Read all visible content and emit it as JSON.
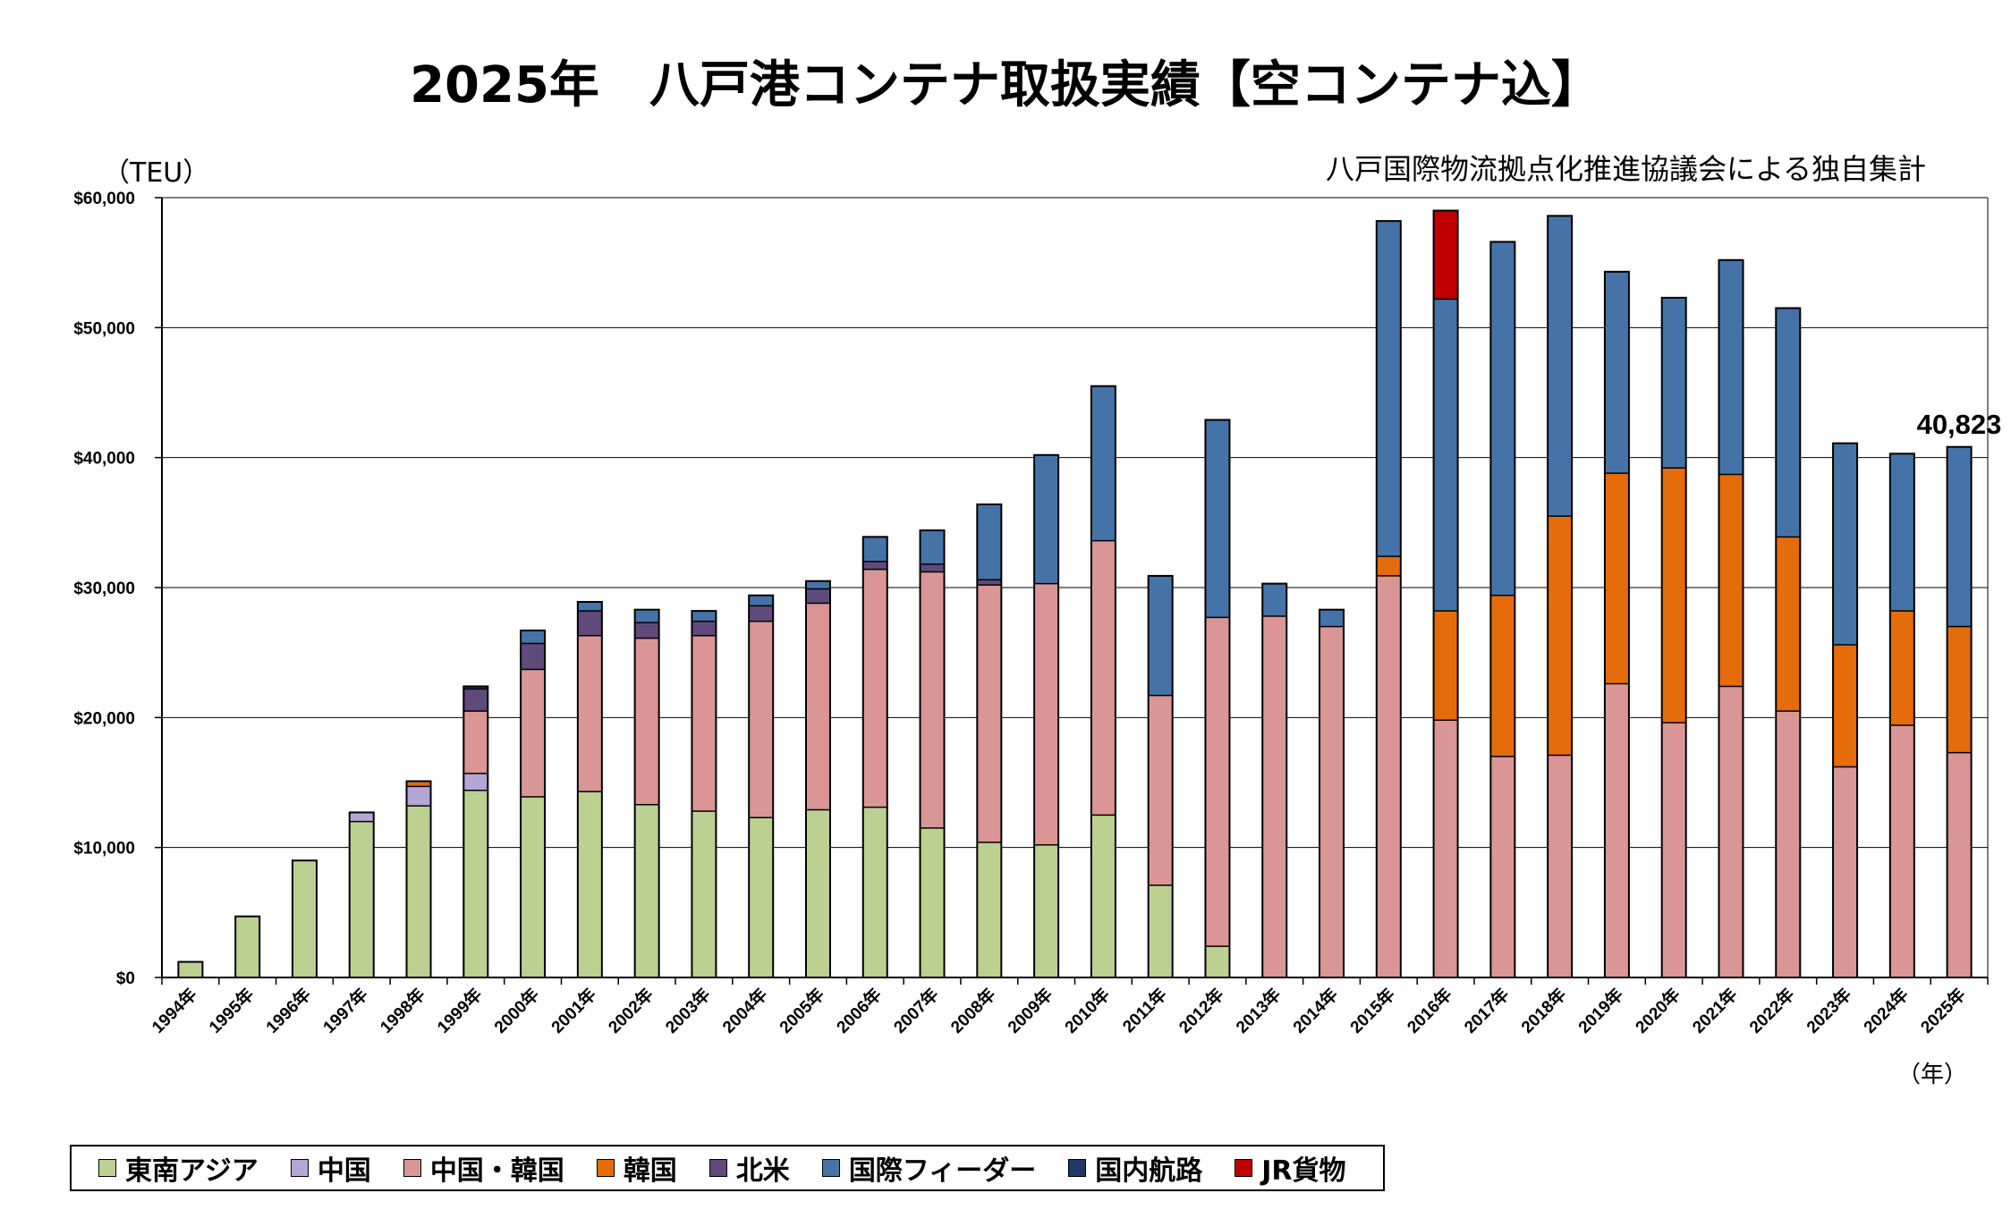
{
  "title": "2025年　八戸港コンテナ取扱実績【空コンテナ込】",
  "unit_label": "（TEU）",
  "source_note": "八戸国際物流拠点化推進協議会による独自集計",
  "x_unit_label": "（年）",
  "annotation": "40,823",
  "chart_data": {
    "type": "bar",
    "stacked": true,
    "title": "2025年　八戸港コンテナ取扱実績【空コンテナ込】",
    "ylim": [
      0,
      60000
    ],
    "y_ticks": [
      "$0",
      "$10,000",
      "$20,000",
      "$30,000",
      "$40,000",
      "$50,000",
      "$60,000"
    ],
    "grid": true,
    "legend_position": "bottom",
    "categories": [
      "1994年",
      "1995年",
      "1996年",
      "1997年",
      "1998年",
      "1999年",
      "2000年",
      "2001年",
      "2002年",
      "2003年",
      "2004年",
      "2005年",
      "2006年",
      "2007年",
      "2008年",
      "2009年",
      "2010年",
      "2011年",
      "2012年",
      "2013年",
      "2014年",
      "2015年",
      "2016年",
      "2017年",
      "2018年",
      "2019年",
      "2020年",
      "2021年",
      "2022年",
      "2023年",
      "2024年",
      "2025年"
    ],
    "series": [
      {
        "name": "東南アジア",
        "color": "#bcd092",
        "values": [
          1200,
          4700,
          9000,
          12000,
          13200,
          14400,
          13900,
          14300,
          13300,
          12800,
          12300,
          12900,
          13100,
          11500,
          10400,
          10200,
          12500,
          7100,
          2400,
          0,
          0,
          0,
          0,
          0,
          0,
          0,
          0,
          0,
          0,
          0,
          0,
          0
        ]
      },
      {
        "name": "中国",
        "color": "#b4a7d6",
        "values": [
          0,
          0,
          0,
          700,
          1500,
          1300,
          0,
          0,
          0,
          0,
          0,
          0,
          0,
          0,
          0,
          0,
          0,
          0,
          0,
          0,
          0,
          0,
          0,
          0,
          0,
          0,
          0,
          0,
          0,
          0,
          0,
          0
        ]
      },
      {
        "name": "中国・韓国",
        "color": "#d99694",
        "values": [
          0,
          0,
          0,
          0,
          0,
          4800,
          9800,
          12000,
          12800,
          13500,
          15100,
          15900,
          18300,
          19700,
          19800,
          20100,
          21100,
          14600,
          25300,
          27800,
          27000,
          30900,
          19800,
          17000,
          17100,
          22600,
          19600,
          22400,
          20500,
          16200,
          19400,
          17300
        ]
      },
      {
        "name": "韓国",
        "color": "#e46c0a",
        "values": [
          0,
          0,
          0,
          0,
          400,
          0,
          0,
          0,
          0,
          0,
          0,
          0,
          0,
          0,
          0,
          0,
          0,
          0,
          0,
          0,
          0,
          1500,
          8400,
          12400,
          18400,
          16200,
          19600,
          16300,
          13400,
          9400,
          8800,
          9700
        ]
      },
      {
        "name": "北米",
        "color": "#604a7b",
        "values": [
          0,
          0,
          0,
          0,
          0,
          1700,
          2000,
          1900,
          1200,
          1100,
          1200,
          1100,
          600,
          600,
          400,
          0,
          0,
          0,
          0,
          0,
          0,
          0,
          0,
          0,
          0,
          0,
          0,
          0,
          0,
          0,
          0,
          0
        ]
      },
      {
        "name": "国際フィーダー",
        "color": "#4573a7",
        "values": [
          0,
          0,
          0,
          0,
          0,
          0,
          1000,
          700,
          1000,
          800,
          800,
          600,
          1900,
          2600,
          5800,
          9900,
          11900,
          9200,
          15200,
          2500,
          1300,
          25800,
          24000,
          27200,
          23100,
          15500,
          13100,
          16500,
          17600,
          15500,
          12100,
          13823
        ]
      },
      {
        "name": "国内航路",
        "color": "#1f3864",
        "values": [
          0,
          0,
          0,
          0,
          0,
          200,
          0,
          0,
          0,
          0,
          0,
          0,
          0,
          0,
          0,
          0,
          0,
          0,
          0,
          0,
          0,
          0,
          0,
          0,
          0,
          0,
          0,
          0,
          0,
          0,
          0,
          0
        ]
      },
      {
        "name": "JR貨物",
        "color": "#c00000",
        "values": [
          0,
          0,
          0,
          0,
          0,
          0,
          0,
          0,
          0,
          0,
          0,
          0,
          0,
          0,
          0,
          0,
          0,
          0,
          0,
          0,
          0,
          0,
          6800,
          0,
          0,
          0,
          0,
          0,
          0,
          0,
          0,
          0
        ]
      }
    ]
  }
}
